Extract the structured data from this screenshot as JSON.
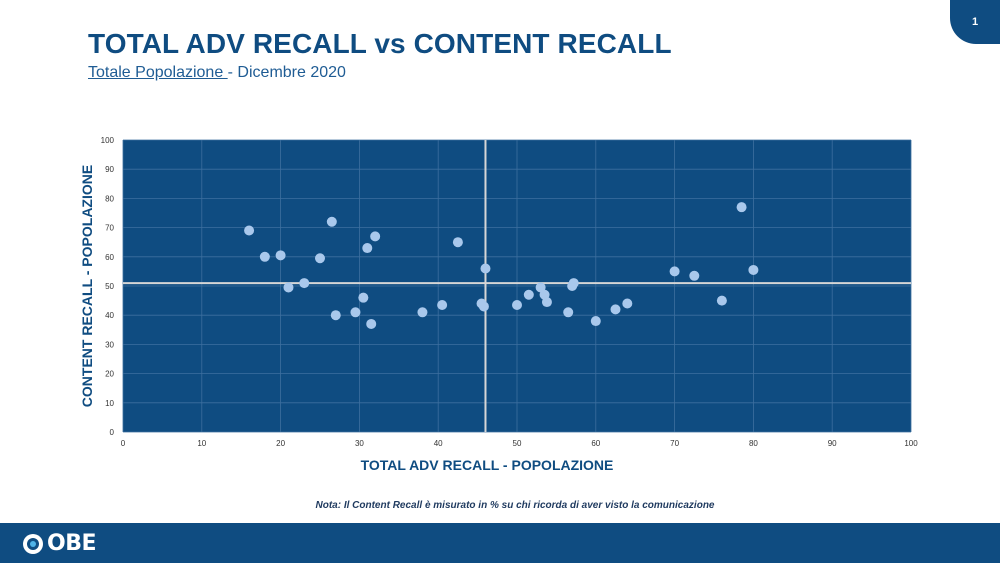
{
  "page_number": "1",
  "title": "TOTAL ADV RECALL vs CONTENT RECALL",
  "subtitle_underlined": "Totale Popolazione ",
  "subtitle_rest": "- Dicembre 2020",
  "note": "Nota: Il Content Recall è misurato in % su chi ricorda di aver visto la comunicazione",
  "logo_text": "OBE",
  "logo_icon": "eye-icon",
  "colors": {
    "brand": "#0f4c81",
    "plot_background": "#0f4c81",
    "point": "#a9c8ec",
    "axis_label": "#0f4c81"
  },
  "chart_data": {
    "type": "scatter",
    "xlabel": "TOTAL ADV RECALL - POPOLAZIONE",
    "ylabel": "CONTENT RECALL - POPOLAZIONE",
    "xlim": [
      0,
      100
    ],
    "ylim": [
      0,
      100
    ],
    "x_ticks": [
      "0",
      "10",
      "20",
      "30",
      "40",
      "50",
      "60",
      "70",
      "80",
      "90",
      "100"
    ],
    "y_ticks": [
      "0",
      "10",
      "20",
      "30",
      "40",
      "50",
      "60",
      "70",
      "80",
      "90",
      "100"
    ],
    "grid": true,
    "reference_lines": {
      "x": 46,
      "y": 51
    },
    "points": [
      {
        "x": 16,
        "y": 69
      },
      {
        "x": 18,
        "y": 60
      },
      {
        "x": 20,
        "y": 60.5
      },
      {
        "x": 21,
        "y": 49.5
      },
      {
        "x": 23,
        "y": 51
      },
      {
        "x": 25,
        "y": 59.5
      },
      {
        "x": 26.5,
        "y": 72
      },
      {
        "x": 27,
        "y": 40
      },
      {
        "x": 29.5,
        "y": 41
      },
      {
        "x": 30.5,
        "y": 46
      },
      {
        "x": 31,
        "y": 63
      },
      {
        "x": 31.5,
        "y": 37
      },
      {
        "x": 32,
        "y": 67
      },
      {
        "x": 38,
        "y": 41
      },
      {
        "x": 40.5,
        "y": 43.5
      },
      {
        "x": 42.5,
        "y": 65
      },
      {
        "x": 45.5,
        "y": 44
      },
      {
        "x": 45.8,
        "y": 43
      },
      {
        "x": 46,
        "y": 56
      },
      {
        "x": 50,
        "y": 43.5
      },
      {
        "x": 51.5,
        "y": 47
      },
      {
        "x": 53,
        "y": 49.5
      },
      {
        "x": 53.5,
        "y": 47
      },
      {
        "x": 53.8,
        "y": 44.5
      },
      {
        "x": 56.5,
        "y": 41
      },
      {
        "x": 57,
        "y": 50
      },
      {
        "x": 57.2,
        "y": 51
      },
      {
        "x": 60,
        "y": 38
      },
      {
        "x": 62.5,
        "y": 42
      },
      {
        "x": 64,
        "y": 44
      },
      {
        "x": 70,
        "y": 55
      },
      {
        "x": 72.5,
        "y": 53.5
      },
      {
        "x": 76,
        "y": 45
      },
      {
        "x": 78.5,
        "y": 77
      },
      {
        "x": 80,
        "y": 55.5
      }
    ]
  }
}
